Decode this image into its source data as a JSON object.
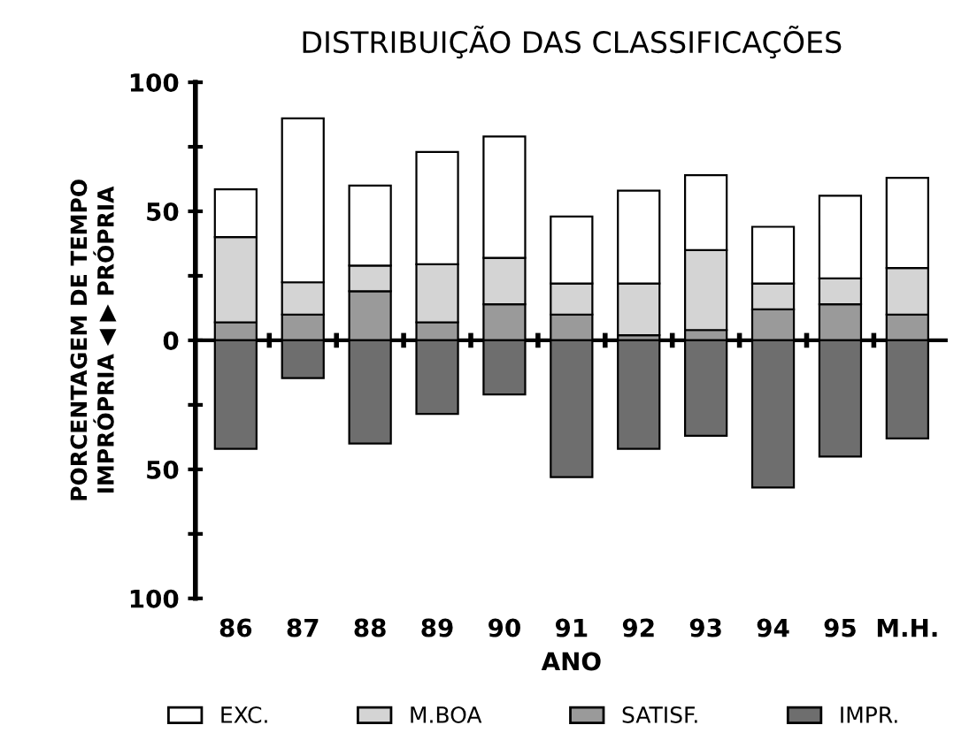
{
  "chart_data": {
    "type": "bar",
    "title": "DISTRIBUIÇÃO DAS CLASSIFICAÇÕES",
    "xlabel": "ANO",
    "ylabel": "PORCENTAGEM DE TEMPO\nIMPRÓPRIA ◀ ▶ PRÓPRIA",
    "categories": [
      "86",
      "87",
      "88",
      "89",
      "90",
      "91",
      "92",
      "93",
      "94",
      "95",
      "M.H."
    ],
    "stacked": true,
    "series": [
      {
        "name": "SATISF.",
        "color": "#9a9a9a",
        "values": [
          7,
          10,
          19,
          7,
          14,
          10,
          2,
          4,
          12,
          14,
          10
        ]
      },
      {
        "name": "M.BOA",
        "color": "#d4d4d4",
        "values": [
          33,
          12.5,
          10,
          22.5,
          18,
          12,
          20,
          31,
          10,
          10,
          18
        ]
      },
      {
        "name": "EXC.",
        "color": "#ffffff",
        "values": [
          18.5,
          63.5,
          31,
          43.5,
          47,
          26,
          36,
          29,
          22,
          32,
          35
        ]
      },
      {
        "name": "IMPR.",
        "color": "#6e6e6e",
        "values": [
          -42,
          -14.6,
          -40,
          -28.5,
          -21,
          -53,
          -42,
          -37,
          -57,
          -45,
          -38
        ]
      }
    ],
    "ylim": [
      -100,
      100
    ],
    "yticks": [
      {
        "value": -100,
        "label": "100"
      },
      {
        "value": -75,
        "label": null
      },
      {
        "value": -50,
        "label": "50"
      },
      {
        "value": -25,
        "label": null
      },
      0,
      {
        "value": 25,
        "label": null
      },
      50,
      {
        "value": 75,
        "label": null
      },
      100
    ],
    "ref_lines": [
      {
        "axis": "y",
        "value": 0,
        "color": "#000000"
      }
    ],
    "legend": "bottom",
    "grid": false
  }
}
